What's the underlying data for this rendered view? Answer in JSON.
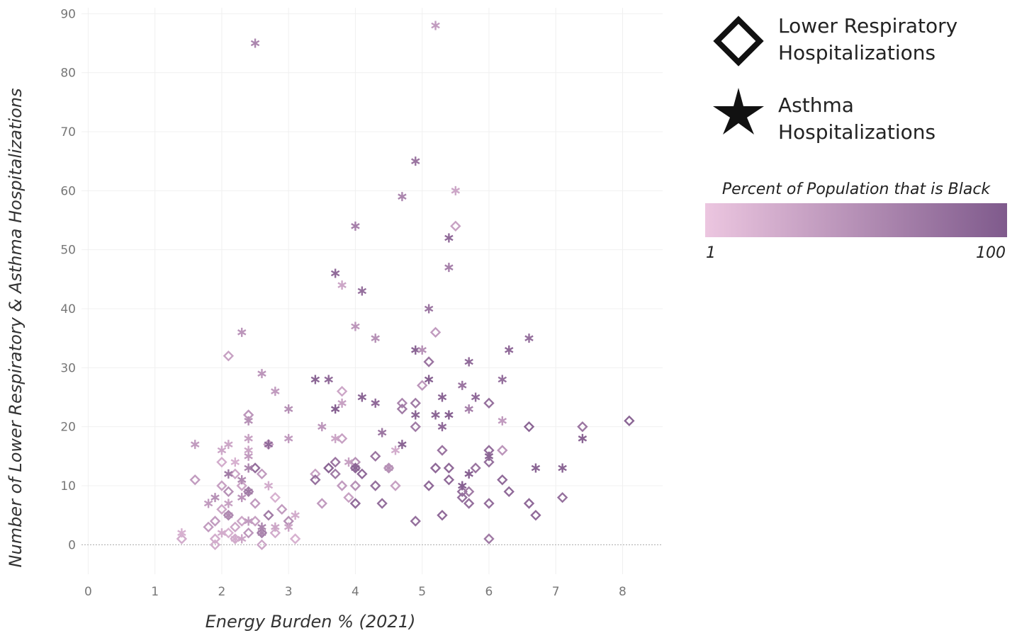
{
  "chart_data": {
    "type": "scatter",
    "xlabel": "Energy Burden % (2021)",
    "ylabel": "Number of Lower Respiratory & Asthma Hospitalizations",
    "xlim": [
      -0.1,
      8.6
    ],
    "xticks": [
      0,
      1,
      2,
      3,
      4,
      5,
      6,
      7,
      8
    ],
    "ylim": [
      -5,
      91
    ],
    "yticks": [
      0,
      10,
      20,
      30,
      40,
      50,
      60,
      70,
      80,
      90
    ],
    "grid": true,
    "colorbar": {
      "title": "Percent of Population that is Black",
      "ticks": [
        1,
        100
      ],
      "colors": [
        "#ecc6e0",
        "#7f5a8c"
      ]
    },
    "series": [
      {
        "name": "Lower Respiratory Hospitalizations",
        "marker": "diamond",
        "x": [
          5.5,
          2.1,
          5.2,
          5.1,
          5.0,
          4.9,
          4.7,
          4.7,
          3.8,
          6.0,
          4.9,
          6.6,
          7.4,
          8.1,
          2.4,
          3.8,
          5.3,
          6.2,
          6.0,
          6.0,
          4.3,
          3.7,
          4.0,
          4.1,
          3.4,
          3.6,
          3.7,
          4.0,
          5.2,
          5.4,
          5.8,
          4.5,
          2.5,
          2.6,
          2.2,
          2.0,
          1.6,
          3.4,
          5.4,
          6.2,
          3.8,
          4.0,
          4.3,
          4.6,
          5.1,
          5.6,
          5.7,
          6.3,
          2.4,
          2.1,
          2.5,
          3.5,
          3.9,
          4.0,
          4.4,
          5.6,
          5.7,
          6.0,
          6.6,
          7.1,
          6.7,
          5.3,
          4.9,
          6.0,
          2.7,
          2.1,
          2.9,
          3.0,
          2.0,
          2.3,
          1.8,
          1.9,
          2.2,
          2.6,
          2.6,
          1.9,
          1.9,
          2.8,
          3.1,
          1.4,
          2.1,
          2.2,
          2.5,
          2.3,
          2.0,
          2.7,
          2.8,
          2.4
        ],
        "values": [
          54,
          32,
          36,
          31,
          27,
          24,
          24,
          23,
          26,
          24,
          20,
          20,
          20,
          21,
          22,
          18,
          16,
          16,
          16,
          14,
          15,
          14,
          14,
          12,
          12,
          13,
          12,
          13,
          13,
          13,
          13,
          13,
          13,
          12,
          12,
          14,
          11,
          11,
          11,
          11,
          10,
          10,
          10,
          10,
          10,
          9,
          9,
          9,
          9,
          9,
          7,
          7,
          8,
          7,
          7,
          8,
          7,
          7,
          7,
          8,
          5,
          5,
          4,
          1,
          5,
          5,
          6,
          4,
          6,
          4,
          3,
          4,
          3,
          2,
          0,
          1,
          0,
          2,
          1,
          1,
          2,
          1,
          4,
          10,
          10,
          17,
          8,
          2
        ],
        "color_values": [
          35,
          35,
          40,
          75,
          45,
          70,
          60,
          70,
          30,
          80,
          70,
          90,
          75,
          90,
          45,
          35,
          75,
          45,
          80,
          80,
          75,
          75,
          50,
          85,
          35,
          90,
          70,
          85,
          85,
          85,
          75,
          50,
          80,
          40,
          30,
          25,
          40,
          80,
          85,
          85,
          40,
          50,
          80,
          35,
          85,
          80,
          70,
          85,
          60,
          50,
          40,
          40,
          35,
          85,
          80,
          80,
          80,
          80,
          85,
          80,
          85,
          85,
          80,
          70,
          70,
          60,
          40,
          50,
          30,
          30,
          40,
          40,
          30,
          70,
          30,
          25,
          25,
          25,
          20,
          25,
          20,
          25,
          35,
          30,
          35,
          35,
          20,
          45
        ]
      },
      {
        "name": "Asthma Hospitalizations",
        "marker": "asterisk",
        "x": [
          2.5,
          5.2,
          4.9,
          5.5,
          4.7,
          4.0,
          5.4,
          5.4,
          3.7,
          3.8,
          4.1,
          5.1,
          4.0,
          2.3,
          4.3,
          6.6,
          6.3,
          4.9,
          5.0,
          5.7,
          2.6,
          3.4,
          3.6,
          5.1,
          6.2,
          5.6,
          2.8,
          4.1,
          5.3,
          5.8,
          4.3,
          3.8,
          3.0,
          3.7,
          5.7,
          4.9,
          5.2,
          5.4,
          2.4,
          6.2,
          3.5,
          5.3,
          4.4,
          2.4,
          3.0,
          3.7,
          7.4,
          1.6,
          2.1,
          2.7,
          4.7,
          2.0,
          2.4,
          4.6,
          2.4,
          6.0,
          3.9,
          2.2,
          2.4,
          6.7,
          7.1,
          4.0,
          4.5,
          2.1,
          5.7,
          2.3,
          5.6,
          2.7,
          2.4,
          1.8,
          1.9,
          2.1,
          2.3,
          2.6,
          2.6,
          3.0,
          2.8,
          3.1,
          1.4,
          2.0,
          2.3,
          2.2,
          2.4,
          2.1
        ],
        "values": [
          85,
          88,
          65,
          60,
          59,
          54,
          52,
          47,
          46,
          44,
          43,
          40,
          37,
          36,
          35,
          35,
          33,
          33,
          33,
          31,
          29,
          28,
          28,
          28,
          28,
          27,
          26,
          25,
          25,
          25,
          24,
          24,
          23,
          23,
          23,
          22,
          22,
          22,
          21,
          21,
          20,
          20,
          19,
          18,
          18,
          18,
          18,
          17,
          17,
          17,
          17,
          16,
          16,
          16,
          15,
          15,
          14,
          14,
          13,
          13,
          13,
          13,
          13,
          12,
          12,
          11,
          10,
          10,
          9,
          7,
          8,
          7,
          8,
          3,
          2,
          3,
          3,
          5,
          2,
          2,
          1,
          1,
          4,
          5
        ],
        "color_values": [
          60,
          40,
          75,
          30,
          60,
          65,
          85,
          65,
          85,
          30,
          80,
          75,
          45,
          45,
          50,
          80,
          85,
          90,
          50,
          85,
          45,
          90,
          85,
          95,
          80,
          75,
          40,
          90,
          90,
          85,
          85,
          35,
          50,
          95,
          65,
          90,
          90,
          95,
          50,
          40,
          45,
          85,
          75,
          35,
          40,
          30,
          90,
          40,
          30,
          85,
          90,
          30,
          30,
          25,
          40,
          90,
          35,
          20,
          60,
          90,
          90,
          90,
          50,
          70,
          95,
          55,
          95,
          25,
          70,
          40,
          50,
          35,
          45,
          60,
          60,
          30,
          30,
          25,
          20,
          25,
          30,
          25,
          40,
          55
        ]
      }
    ]
  }
}
